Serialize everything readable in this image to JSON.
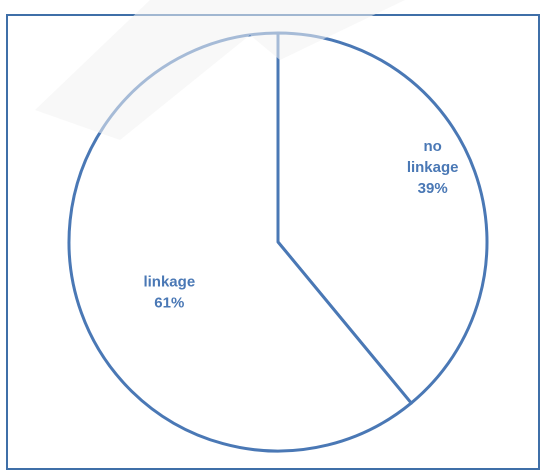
{
  "chart_data": {
    "type": "pie",
    "categories": [
      "no linkage",
      "linkage"
    ],
    "values": [
      39,
      61
    ],
    "label_lines": [
      [
        "no",
        "linkage",
        "39%"
      ],
      [
        "linkage",
        "61%"
      ]
    ],
    "colors": {
      "fill": "#ffffff",
      "stroke": "#4a78b5",
      "label": "#4a78b5",
      "frame": "#3f6fa8"
    },
    "legend": "none"
  }
}
